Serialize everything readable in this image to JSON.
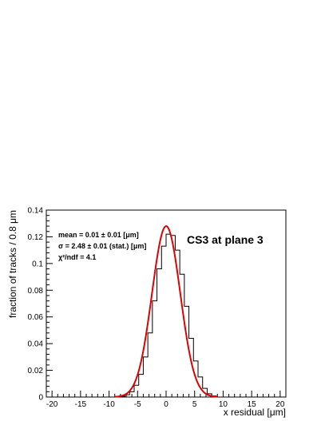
{
  "chart_data": {
    "type": "histogram",
    "title": "CS3 at plane 3",
    "xlabel": "x residual [μm]",
    "ylabel": "fraction of tracks / 0.8 μm",
    "xlim": [
      -21,
      21
    ],
    "ylim": [
      0,
      0.14
    ],
    "x_ticks": [
      "-20",
      "-15",
      "-10",
      "-5",
      "0",
      "5",
      "10",
      "15",
      "20"
    ],
    "y_ticks": [
      "0",
      "0.02",
      "0.04",
      "0.06",
      "0.08",
      "0.1",
      "0.12",
      "0.14"
    ],
    "bin_width": 0.8,
    "histogram": {
      "bin_left_edges": [
        -8.8,
        -8.0,
        -7.2,
        -6.4,
        -5.6,
        -4.8,
        -4.0,
        -3.2,
        -2.4,
        -1.6,
        -0.8,
        0.0,
        0.8,
        1.6,
        2.4,
        3.2,
        4.0,
        4.8,
        5.6,
        6.4,
        7.2,
        8.0
      ],
      "values": [
        0.0002,
        0.0006,
        0.0017,
        0.004,
        0.0088,
        0.017,
        0.03,
        0.048,
        0.072,
        0.096,
        0.113,
        0.122,
        0.121,
        0.11,
        0.092,
        0.068,
        0.044,
        0.027,
        0.015,
        0.0065,
        0.0025,
        0.0008
      ],
      "color": "#000000"
    },
    "fit": {
      "function": "gaussian",
      "amplitude": 0.128,
      "mean": 0.01,
      "sigma": 2.48,
      "color": "#e00000"
    },
    "stats_box": [
      "mean = 0.01 ± 0.01 [μm]",
      "σ = 2.48 ± 0.01 (stat.) [μm]",
      "χ²/ndf = 4.1"
    ]
  }
}
